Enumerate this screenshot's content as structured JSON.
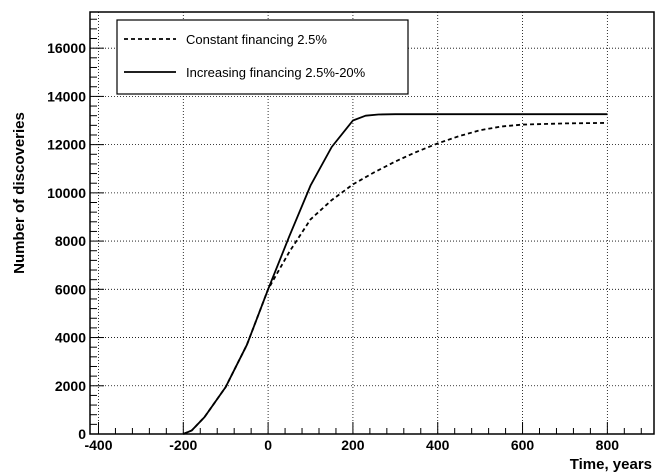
{
  "chart_data": {
    "type": "line",
    "xlabel": "Time, years",
    "ylabel": "Number of discoveries",
    "xlim": [
      -420,
      910
    ],
    "ylim": [
      0,
      17500
    ],
    "x_ticks": [
      -400,
      -200,
      0,
      200,
      400,
      600,
      800
    ],
    "y_ticks": [
      0,
      2000,
      4000,
      6000,
      8000,
      10000,
      12000,
      14000,
      16000
    ],
    "grid": true,
    "legend_position": "top-left",
    "series": [
      {
        "name": "Constant financing 2.5%",
        "style": "dashed",
        "points": [
          [
            -200,
            0
          ],
          [
            -180,
            150
          ],
          [
            -150,
            700
          ],
          [
            -100,
            1950
          ],
          [
            -50,
            3700
          ],
          [
            0,
            6000
          ],
          [
            50,
            7550
          ],
          [
            100,
            8900
          ],
          [
            150,
            9700
          ],
          [
            200,
            10350
          ],
          [
            250,
            10850
          ],
          [
            300,
            11300
          ],
          [
            350,
            11700
          ],
          [
            400,
            12050
          ],
          [
            450,
            12350
          ],
          [
            500,
            12600
          ],
          [
            550,
            12750
          ],
          [
            600,
            12830
          ],
          [
            700,
            12880
          ],
          [
            800,
            12900
          ]
        ]
      },
      {
        "name": "Increasing financing 2.5%-20%",
        "style": "solid",
        "points": [
          [
            -200,
            0
          ],
          [
            -180,
            150
          ],
          [
            -150,
            700
          ],
          [
            -100,
            1950
          ],
          [
            -50,
            3700
          ],
          [
            0,
            6000
          ],
          [
            50,
            8200
          ],
          [
            100,
            10300
          ],
          [
            150,
            11900
          ],
          [
            200,
            13000
          ],
          [
            230,
            13200
          ],
          [
            260,
            13250
          ],
          [
            300,
            13260
          ],
          [
            400,
            13260
          ],
          [
            500,
            13260
          ],
          [
            600,
            13260
          ],
          [
            700,
            13260
          ],
          [
            800,
            13260
          ]
        ]
      }
    ]
  }
}
